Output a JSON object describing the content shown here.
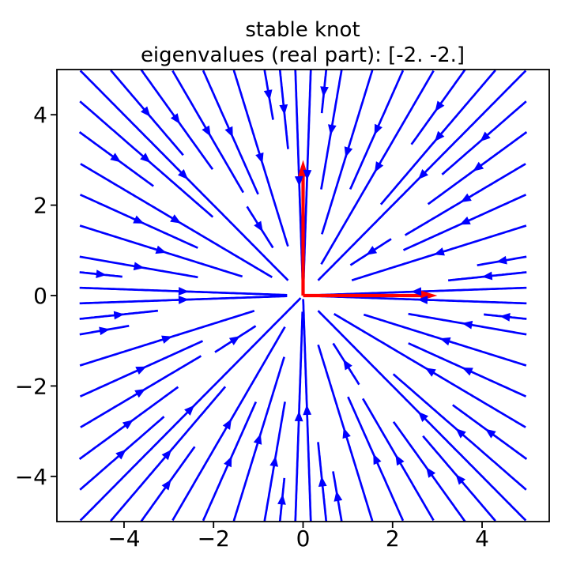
{
  "title": {
    "line1": "stable knot",
    "line2": "eigenvalues (real part): [-2. -2.]"
  },
  "chart_data": {
    "type": "streamplot",
    "description": "Phase portrait of the linear system x' = A x with a stable node (knot) at the origin; blue streamlines flow radially inward, red arrows mark the eigenvector directions scaled by 3.",
    "matrix": [
      [
        -2,
        0
      ],
      [
        0,
        -2
      ]
    ],
    "eigenvalues_real": [
      -2,
      -2
    ],
    "eigenvectors": [
      [
        1,
        0
      ],
      [
        0,
        1
      ]
    ],
    "eigenvector_arrows": [
      {
        "x": 0,
        "y": 0,
        "dx": 3,
        "dy": 0
      },
      {
        "x": 0,
        "y": 0,
        "dx": 0,
        "dy": 3
      }
    ],
    "field_domain": {
      "x": [
        -5,
        5
      ],
      "y": [
        -5,
        5
      ],
      "grid": 30
    },
    "xlim": [
      -5.5,
      5.5
    ],
    "ylim": [
      -5,
      5
    ],
    "x_ticks": [
      {
        "value": -4,
        "label": "−4"
      },
      {
        "value": -2,
        "label": "−2"
      },
      {
        "value": 0,
        "label": "0"
      },
      {
        "value": 2,
        "label": "2"
      },
      {
        "value": 4,
        "label": "4"
      }
    ],
    "y_ticks": [
      {
        "value": -4,
        "label": "−4"
      },
      {
        "value": -2,
        "label": "−2"
      },
      {
        "value": 0,
        "label": "0"
      },
      {
        "value": 2,
        "label": "2"
      },
      {
        "value": 4,
        "label": "4"
      }
    ],
    "density": 1,
    "min_streamline_length": 0.9,
    "stream_color": "#0000ff",
    "eigen_arrow_color": "#ff0000",
    "axis_color": "#000000",
    "background_color": "#ffffff",
    "grid": false
  }
}
